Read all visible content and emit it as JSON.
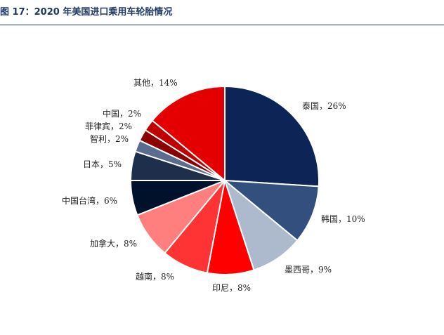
{
  "header": {
    "title": "图 17：2020 年美国进口乘用车轮胎情况"
  },
  "chart_data": {
    "type": "pie",
    "title": "",
    "categories": [
      "泰国",
      "韩国",
      "墨西哥",
      "印尼",
      "越南",
      "加拿大",
      "中国台湾",
      "日本",
      "智利",
      "菲律宾",
      "中国",
      "其他"
    ],
    "values": [
      26,
      10,
      9,
      8,
      8,
      8,
      6,
      5,
      2,
      2,
      2,
      14
    ],
    "labels": [
      "泰国，26%",
      "韩国，10%",
      "墨西哥，9%",
      "印尼，8%",
      "越南，8%",
      "加拿大，8%",
      "中国台湾，6%",
      "日本，5%",
      "智利，2%",
      "菲律宾，2%",
      "中国，2%",
      "其他，14%"
    ],
    "colors": [
      "#0d2456",
      "#324f7e",
      "#adb9cd",
      "#fe0000",
      "#fe3333",
      "#ff7f7f",
      "#00112b",
      "#1e2f4c",
      "#5a6d8e",
      "#8b0000",
      "#c00000",
      "#e40000"
    ],
    "legend": "none",
    "unit": "%"
  }
}
